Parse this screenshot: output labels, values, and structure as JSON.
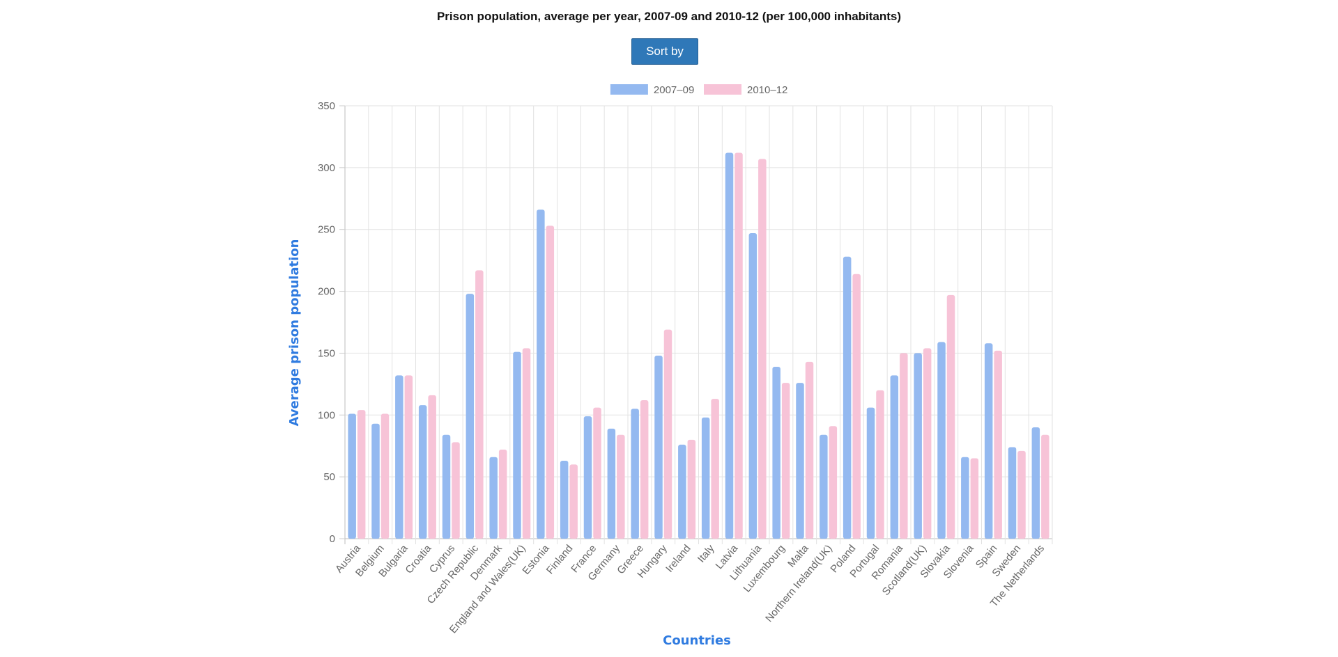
{
  "page": {
    "title": "Prison population, average per year, 2007-09 and 2010-12 (per 100,000 inhabitants)",
    "sort_button_label": "Sort by"
  },
  "chart_data": {
    "type": "bar",
    "title": "Prison population, average per year, 2007-09 and 2010-12 (per 100,000 inhabitants)",
    "xlabel": "Countries",
    "ylabel": "Average prison population",
    "ylim": [
      0,
      350
    ],
    "yticks": [
      0,
      50,
      100,
      150,
      200,
      250,
      300,
      350
    ],
    "grid": true,
    "legend_position": "top",
    "categories": [
      "Austria",
      "Belgium",
      "Bulgaria",
      "Croatia",
      "Cyprus",
      "Czech Republic",
      "Denmark",
      "England and Wales(UK)",
      "Estonia",
      "Finland",
      "France",
      "Germany",
      "Greece",
      "Hungary",
      "Ireland",
      "Italy",
      "Latvia",
      "Lithuania",
      "Luxembourg",
      "Malta",
      "Northern Ireland(UK)",
      "Poland",
      "Portugal",
      "Romania",
      "Scotland(UK)",
      "Slovakia",
      "Slovenia",
      "Spain",
      "Sweden",
      "The Netherlands"
    ],
    "series": [
      {
        "name": "2007–09",
        "color": "#94b9f0",
        "values": [
          101,
          93,
          132,
          108,
          84,
          198,
          66,
          151,
          266,
          63,
          99,
          89,
          105,
          148,
          76,
          98,
          312,
          247,
          139,
          126,
          84,
          228,
          106,
          132,
          150,
          159,
          66,
          158,
          74,
          90
        ]
      },
      {
        "name": "2010–12",
        "color": "#f7c3d7",
        "values": [
          104,
          101,
          132,
          116,
          78,
          217,
          72,
          154,
          253,
          60,
          106,
          84,
          112,
          169,
          80,
          113,
          312,
          307,
          126,
          143,
          91,
          214,
          120,
          150,
          154,
          197,
          65,
          152,
          71,
          84
        ]
      }
    ]
  }
}
